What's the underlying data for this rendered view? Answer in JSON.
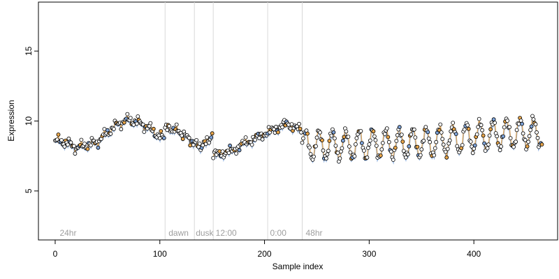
{
  "chart_data": {
    "type": "scatter",
    "title": "",
    "xlabel": "Sample index",
    "ylabel": "Expression",
    "xlim": [
      -16,
      480
    ],
    "ylim": [
      1.5,
      18.5
    ],
    "x_ticks": [
      0,
      100,
      200,
      300,
      400
    ],
    "y_ticks": [
      5,
      10,
      15
    ],
    "grid": false,
    "legend": "none",
    "colors": {
      "points_fill": "#ffffff",
      "points_stroke": "#000000",
      "highlight_orange": "#e9a64a",
      "highlight_blue": "#7ea3d8",
      "vline": "#d8d8d8",
      "region_label": "#9e9e9e"
    },
    "vlines": [
      105,
      133,
      151,
      203,
      236
    ],
    "regions": [
      {
        "label": "24hr",
        "x": 3
      },
      {
        "label": "dawn",
        "x": 107
      },
      {
        "label": "dusk",
        "x": 133
      },
      {
        "label": "12:00",
        "x": 152
      },
      {
        "label": "0:00",
        "x": 204
      },
      {
        "label": "48hr",
        "x": 238
      }
    ],
    "series": [
      {
        "segments": [
          {
            "range": [
              0,
              105
            ],
            "anchors": [
              [
                0,
                8.6
              ],
              [
                10,
                8.5
              ],
              [
                20,
                8.1
              ],
              [
                30,
                8.3
              ],
              [
                40,
                8.5
              ],
              [
                50,
                9.2
              ],
              [
                60,
                9.8
              ],
              [
                70,
                10.1
              ],
              [
                80,
                9.9
              ],
              [
                90,
                9.5
              ],
              [
                100,
                8.9
              ],
              [
                105,
                8.7
              ]
            ],
            "osc_amp": 0.2,
            "osc_period": 11
          },
          {
            "range": [
              105,
              151
            ],
            "anchors": [
              [
                105,
                9.5
              ],
              [
                115,
                9.4
              ],
              [
                125,
                8.9
              ],
              [
                133,
                8.4
              ],
              [
                140,
                8.2
              ],
              [
                146,
                8.6
              ],
              [
                151,
                9.1
              ]
            ],
            "osc_amp": 0.15,
            "osc_period": 9
          },
          {
            "range": [
              151,
              236
            ],
            "anchors": [
              [
                151,
                7.6
              ],
              [
                160,
                7.7
              ],
              [
                170,
                7.9
              ],
              [
                180,
                8.4
              ],
              [
                190,
                8.7
              ],
              [
                200,
                9.1
              ],
              [
                210,
                9.4
              ],
              [
                220,
                9.8
              ],
              [
                228,
                9.6
              ],
              [
                236,
                9.3
              ]
            ],
            "osc_amp": 0.15,
            "osc_period": 13
          },
          {
            "range": [
              236,
              465
            ],
            "anchors": [
              [
                236,
                8.3
              ],
              [
                280,
                8.3
              ],
              [
                320,
                8.4
              ],
              [
                360,
                8.5
              ],
              [
                400,
                8.9
              ],
              [
                430,
                9.1
              ],
              [
                465,
                9.2
              ]
            ],
            "osc_amp": 1.0,
            "osc_period": 12.8
          }
        ],
        "n_points": 466
      }
    ]
  }
}
